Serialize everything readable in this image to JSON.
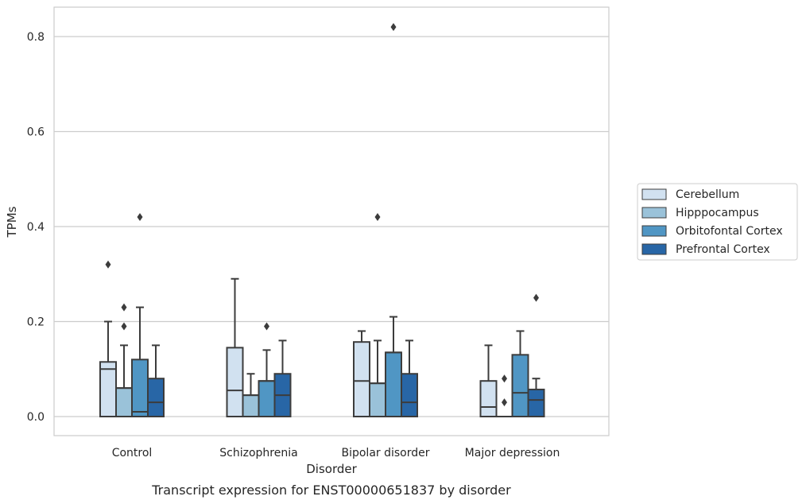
{
  "chart_data": {
    "type": "box",
    "title": "",
    "caption": "Transcript expression for ENST00000651837 by disorder",
    "xlabel": "Disorder",
    "ylabel": "TPMs",
    "ylim": [
      -0.04,
      0.86
    ],
    "yticks": [
      "0.0",
      "0.2",
      "0.4",
      "0.6",
      "0.8"
    ],
    "grid": true,
    "legend_position": "right",
    "categories": [
      "Control",
      "Schizophrenia",
      "Bipolar disorder",
      "Major depression"
    ],
    "series": [
      {
        "name": "Cerebellum",
        "color": "#d1e1f0",
        "boxes": [
          {
            "q1": 0.0,
            "median": 0.1,
            "q3": 0.115,
            "whisker_low": 0.0,
            "whisker_high": 0.2,
            "outliers": [
              0.32
            ]
          },
          {
            "q1": 0.0,
            "median": 0.055,
            "q3": 0.145,
            "whisker_low": 0.0,
            "whisker_high": 0.29,
            "outliers": []
          },
          {
            "q1": 0.0,
            "median": 0.075,
            "q3": 0.157,
            "whisker_low": 0.0,
            "whisker_high": 0.18,
            "outliers": []
          },
          {
            "q1": 0.0,
            "median": 0.02,
            "q3": 0.075,
            "whisker_low": 0.0,
            "whisker_high": 0.15,
            "outliers": []
          }
        ]
      },
      {
        "name": "Hipppocampus",
        "color": "#9ac2d9",
        "boxes": [
          {
            "q1": 0.0,
            "median": 0.06,
            "q3": 0.06,
            "whisker_low": 0.0,
            "whisker_high": 0.15,
            "outliers": [
              0.19,
              0.23
            ]
          },
          {
            "q1": 0.0,
            "median": 0.045,
            "q3": 0.045,
            "whisker_low": 0.0,
            "whisker_high": 0.09,
            "outliers": []
          },
          {
            "q1": 0.0,
            "median": 0.07,
            "q3": 0.07,
            "whisker_low": 0.0,
            "whisker_high": 0.16,
            "outliers": [
              0.42
            ]
          },
          {
            "q1": 0.0,
            "median": 0.0,
            "q3": 0.0,
            "whisker_low": 0.0,
            "whisker_high": 0.0,
            "outliers": [
              0.03,
              0.08
            ]
          }
        ]
      },
      {
        "name": "Orbitofontal Cortex",
        "color": "#5096c4",
        "boxes": [
          {
            "q1": 0.0,
            "median": 0.01,
            "q3": 0.12,
            "whisker_low": 0.0,
            "whisker_high": 0.23,
            "outliers": [
              0.42
            ]
          },
          {
            "q1": 0.0,
            "median": 0.075,
            "q3": 0.075,
            "whisker_low": 0.0,
            "whisker_high": 0.14,
            "outliers": [
              0.19
            ]
          },
          {
            "q1": 0.0,
            "median": 0.135,
            "q3": 0.135,
            "whisker_low": 0.0,
            "whisker_high": 0.21,
            "outliers": [
              0.82
            ]
          },
          {
            "q1": 0.0,
            "median": 0.05,
            "q3": 0.13,
            "whisker_low": 0.0,
            "whisker_high": 0.18,
            "outliers": []
          }
        ]
      },
      {
        "name": "Prefrontal Cortex",
        "color": "#2866a6",
        "boxes": [
          {
            "q1": 0.0,
            "median": 0.03,
            "q3": 0.08,
            "whisker_low": 0.0,
            "whisker_high": 0.15,
            "outliers": []
          },
          {
            "q1": 0.0,
            "median": 0.045,
            "q3": 0.09,
            "whisker_low": 0.0,
            "whisker_high": 0.16,
            "outliers": []
          },
          {
            "q1": 0.0,
            "median": 0.03,
            "q3": 0.09,
            "whisker_low": 0.0,
            "whisker_high": 0.16,
            "outliers": []
          },
          {
            "q1": 0.0,
            "median": 0.035,
            "q3": 0.057,
            "whisker_low": 0.0,
            "whisker_high": 0.08,
            "outliers": [
              0.25
            ]
          }
        ]
      }
    ]
  }
}
